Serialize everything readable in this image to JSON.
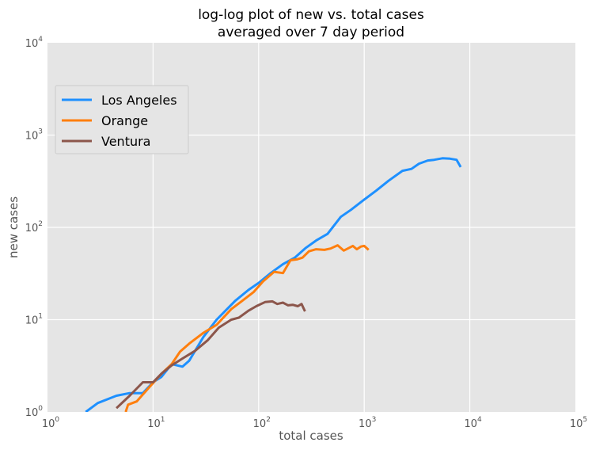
{
  "chart_data": {
    "type": "line",
    "title": "log-log plot of new vs. total cases\naveraged over 7 day period",
    "xlabel": "total cases",
    "ylabel": "new cases",
    "xscale": "log",
    "yscale": "log",
    "xlim": [
      1,
      100000
    ],
    "ylim": [
      1,
      10000
    ],
    "xticks": [
      1,
      10,
      100,
      1000,
      10000,
      100000
    ],
    "yticks": [
      1,
      10,
      100,
      1000,
      10000
    ],
    "grid": true,
    "legend_position": "upper-left",
    "series": [
      {
        "name": "Los Angeles",
        "color": "#1e90ff",
        "x": [
          2.3,
          3.0,
          4.5,
          6,
          8,
          10,
          12,
          15,
          19,
          22,
          30,
          40,
          60,
          80,
          100,
          130,
          170,
          220,
          280,
          350,
          450,
          600,
          750,
          1000,
          1300,
          1700,
          2300,
          2800,
          3300,
          4000,
          4600,
          5500,
          6500,
          7500,
          8200
        ],
        "y": [
          1.0,
          1.25,
          1.5,
          1.6,
          1.6,
          2.1,
          2.4,
          3.3,
          3.1,
          3.6,
          6.5,
          10,
          16,
          21,
          25,
          32,
          40,
          47,
          60,
          72,
          85,
          130,
          155,
          200,
          250,
          320,
          410,
          430,
          490,
          530,
          540,
          560,
          555,
          540,
          450
        ]
      },
      {
        "name": "Orange",
        "color": "#ff7f0e",
        "x": [
          5.5,
          5.8,
          7,
          9,
          12,
          15,
          18,
          22,
          30,
          40,
          55,
          70,
          90,
          110,
          140,
          170,
          200,
          230,
          260,
          300,
          350,
          420,
          480,
          560,
          640,
          700,
          780,
          850,
          930,
          1000,
          1100
        ],
        "y": [
          1.0,
          1.2,
          1.3,
          1.8,
          2.6,
          3.3,
          4.5,
          5.5,
          7.2,
          8.8,
          13,
          16,
          20,
          26,
          33,
          32,
          44,
          45,
          47,
          55,
          58,
          57,
          59,
          64,
          56,
          59,
          63,
          58,
          62,
          63,
          57
        ]
      },
      {
        "name": "Ventura",
        "color": "#8c564b",
        "x": [
          4.5,
          6,
          8,
          10,
          12,
          15,
          19,
          25,
          33,
          42,
          55,
          65,
          80,
          95,
          115,
          135,
          150,
          170,
          190,
          210,
          235,
          255,
          275
        ],
        "y": [
          1.1,
          1.5,
          2.1,
          2.1,
          2.6,
          3.2,
          3.8,
          4.6,
          6.0,
          8.2,
          10,
          10.5,
          12.5,
          14,
          15.5,
          15.8,
          14.8,
          15.3,
          14.3,
          14.5,
          14.0,
          14.8,
          12.3
        ]
      }
    ]
  }
}
